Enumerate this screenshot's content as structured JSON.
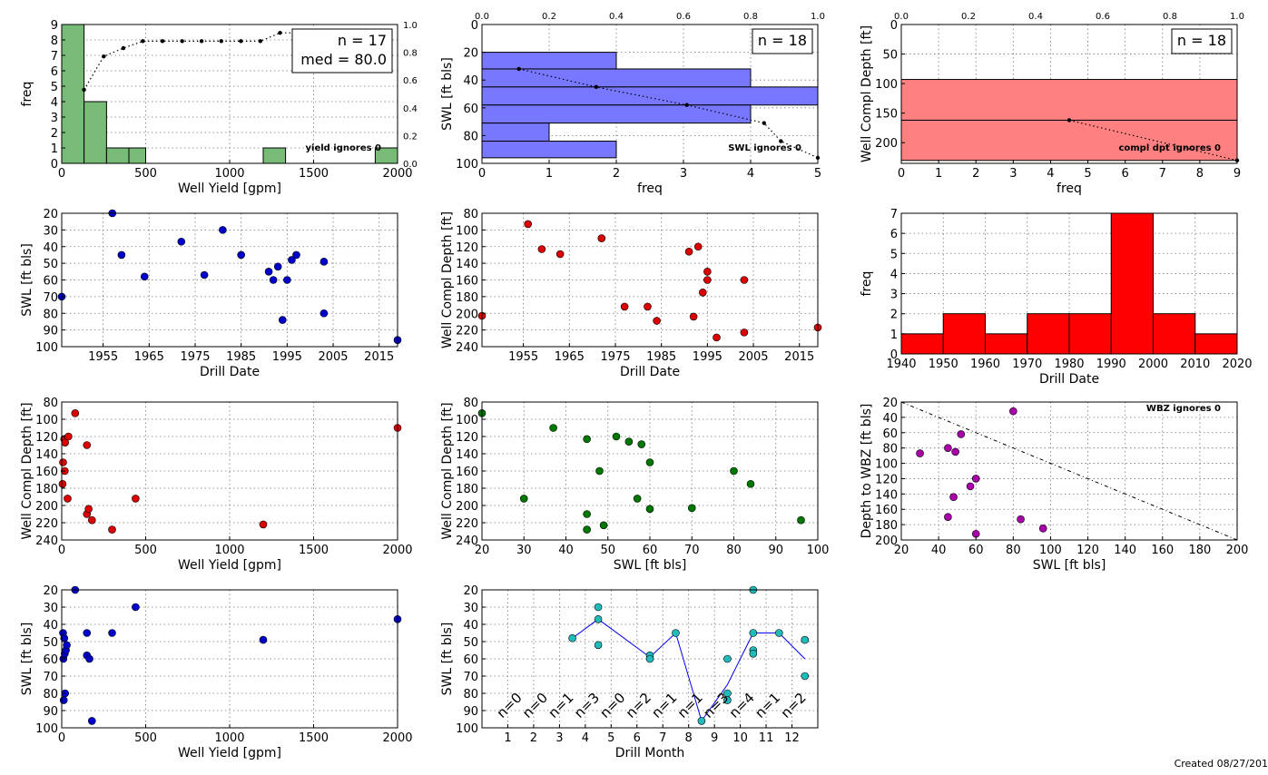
{
  "footer": {
    "created": "Created 08/27/201"
  },
  "chart_data": [
    {
      "id": "yield-hist",
      "type": "bar",
      "xlabel": "Well Yield [gpm]",
      "ylabel": "freq",
      "xlim": [
        0,
        2000
      ],
      "ylim": [
        0,
        9
      ],
      "y2lim": [
        0,
        1.0
      ],
      "xticks": [
        0,
        500,
        1000,
        1500,
        2000
      ],
      "yticks": [
        0,
        1,
        2,
        3,
        4,
        5,
        6,
        7,
        8,
        9
      ],
      "y2ticks": [
        "0.0",
        "0.2",
        "0.4",
        "0.6",
        "0.8",
        "1.0"
      ],
      "bars": [
        {
          "x0": 0,
          "x1": 133,
          "value": 9
        },
        {
          "x0": 133,
          "x1": 267,
          "value": 4
        },
        {
          "x0": 267,
          "x1": 400,
          "value": 1
        },
        {
          "x0": 400,
          "x1": 500,
          "value": 1
        },
        {
          "x0": 1200,
          "x1": 1333,
          "value": 1
        },
        {
          "x0": 1867,
          "x1": 2000,
          "value": 1
        }
      ],
      "bar_color": "#77bb77",
      "cdf": [
        [
          133,
          0.53
        ],
        [
          250,
          0.77
        ],
        [
          367,
          0.83
        ],
        [
          483,
          0.88
        ],
        [
          600,
          0.88
        ],
        [
          717,
          0.88
        ],
        [
          833,
          0.88
        ],
        [
          950,
          0.88
        ],
        [
          1067,
          0.88
        ],
        [
          1183,
          0.88
        ],
        [
          1300,
          0.94
        ],
        [
          1417,
          0.94
        ],
        [
          1533,
          0.94
        ],
        [
          1650,
          0.94
        ],
        [
          1767,
          0.94
        ],
        [
          1883,
          0.94
        ]
      ],
      "box_lines": [
        "n = 17",
        "med = 80.0"
      ],
      "note": "yield ignores 0"
    },
    {
      "id": "swl-hist",
      "type": "bar",
      "orientation": "horizontal",
      "xlabel": "freq",
      "ylabel": "SWL [ft bls]",
      "xlim": [
        0,
        5
      ],
      "ylim": [
        100,
        0
      ],
      "x2lim": [
        0,
        1.0
      ],
      "xticks": [
        0,
        1,
        2,
        3,
        4,
        5
      ],
      "yticks": [
        0,
        20,
        40,
        60,
        80,
        100
      ],
      "x2ticks": [
        "0.0",
        "0.2",
        "0.4",
        "0.6",
        "0.8",
        "1.0"
      ],
      "bars": [
        {
          "y0": 20,
          "y1": 32,
          "value": 2
        },
        {
          "y0": 32,
          "y1": 45,
          "value": 4
        },
        {
          "y0": 45,
          "y1": 58,
          "value": 5
        },
        {
          "y0": 58,
          "y1": 71,
          "value": 4
        },
        {
          "y0": 71,
          "y1": 84,
          "value": 1
        },
        {
          "y0": 84,
          "y1": 96,
          "value": 2
        }
      ],
      "bar_color": "#7777ff",
      "cdf": [
        [
          0.11,
          32
        ],
        [
          0.34,
          45
        ],
        [
          0.61,
          58
        ],
        [
          0.84,
          71
        ],
        [
          0.89,
          84
        ],
        [
          1.0,
          96
        ]
      ],
      "box_lines": [
        "n = 18"
      ],
      "note": "SWL ignores 0"
    },
    {
      "id": "depth-hist",
      "type": "bar",
      "orientation": "horizontal",
      "xlabel": "freq",
      "ylabel": "Well Compl Depth [ft]",
      "xlim": [
        0,
        9
      ],
      "ylim": [
        235,
        0
      ],
      "x2lim": [
        0,
        1.0
      ],
      "xticks": [
        0,
        1,
        2,
        3,
        4,
        5,
        6,
        7,
        8,
        9
      ],
      "yticks": [
        0,
        50,
        100,
        150,
        200
      ],
      "x2ticks": [
        "0.0",
        "0.2",
        "0.4",
        "0.6",
        "0.8",
        "1.0"
      ],
      "bars": [
        {
          "y0": 93,
          "y1": 162,
          "value": 9
        },
        {
          "y0": 162,
          "y1": 230,
          "value": 9
        }
      ],
      "bar_color": "#ff8080",
      "cdf": [
        [
          0.5,
          162
        ],
        [
          1.0,
          230
        ]
      ],
      "box_lines": [
        "n = 18"
      ],
      "note": "compl dpt ignores 0"
    },
    {
      "id": "swl-vs-date",
      "type": "scatter",
      "xlabel": "Drill Date",
      "ylabel": "SWL [ft bls]",
      "xlim": [
        1946,
        2019
      ],
      "ylim": [
        100,
        20
      ],
      "xticks": [
        1955,
        1965,
        1975,
        1985,
        1995,
        2005,
        2015
      ],
      "yticks": [
        20,
        30,
        40,
        50,
        60,
        70,
        80,
        90,
        100
      ],
      "color": "#0000cc",
      "points": [
        [
          1946,
          70
        ],
        [
          1957,
          20
        ],
        [
          1959,
          45
        ],
        [
          1964,
          58
        ],
        [
          1972,
          37
        ],
        [
          1977,
          57
        ],
        [
          1981,
          30
        ],
        [
          1985,
          45
        ],
        [
          1991,
          55
        ],
        [
          1992,
          60
        ],
        [
          1993,
          52
        ],
        [
          1994,
          84
        ],
        [
          1995,
          60
        ],
        [
          1996,
          48
        ],
        [
          1997,
          45
        ],
        [
          2003,
          49
        ],
        [
          2003,
          80
        ],
        [
          2019,
          96
        ]
      ]
    },
    {
      "id": "depth-vs-date",
      "type": "scatter",
      "xlabel": "Drill Date",
      "ylabel": "Well Compl Depth [ft]",
      "xlim": [
        1946,
        2019
      ],
      "ylim": [
        240,
        80
      ],
      "xticks": [
        1955,
        1965,
        1975,
        1985,
        1995,
        2005,
        2015
      ],
      "yticks": [
        80,
        100,
        120,
        140,
        160,
        180,
        200,
        220,
        240
      ],
      "color": "#dd0000",
      "points": [
        [
          1946,
          203
        ],
        [
          1956,
          93
        ],
        [
          1959,
          123
        ],
        [
          1963,
          129
        ],
        [
          1972,
          110
        ],
        [
          1977,
          192
        ],
        [
          1982,
          192
        ],
        [
          1984,
          209
        ],
        [
          1991,
          126
        ],
        [
          1992,
          204
        ],
        [
          1993,
          120
        ],
        [
          1994,
          175
        ],
        [
          1995,
          150
        ],
        [
          1995,
          160
        ],
        [
          1997,
          229
        ],
        [
          2003,
          160
        ],
        [
          2003,
          223
        ],
        [
          2019,
          217
        ]
      ]
    },
    {
      "id": "date-hist",
      "type": "bar",
      "xlabel": "Drill Date",
      "ylabel": "freq",
      "xlim": [
        1940,
        2020
      ],
      "ylim": [
        0,
        7
      ],
      "xticks": [
        1940,
        1950,
        1960,
        1970,
        1980,
        1990,
        2000,
        2010,
        2020
      ],
      "yticks": [
        0,
        1,
        2,
        3,
        4,
        5,
        6,
        7
      ],
      "bars": [
        {
          "x0": 1940,
          "x1": 1950,
          "value": 1
        },
        {
          "x0": 1950,
          "x1": 1960,
          "value": 2
        },
        {
          "x0": 1960,
          "x1": 1970,
          "value": 1
        },
        {
          "x0": 1970,
          "x1": 1980,
          "value": 2
        },
        {
          "x0": 1980,
          "x1": 1990,
          "value": 2
        },
        {
          "x0": 1990,
          "x1": 2000,
          "value": 7
        },
        {
          "x0": 2000,
          "x1": 2010,
          "value": 2
        },
        {
          "x0": 2010,
          "x1": 2020,
          "value": 1
        }
      ],
      "bar_color": "#ff0000"
    },
    {
      "id": "depth-vs-yield",
      "type": "scatter",
      "xlabel": "Well Yield [gpm]",
      "ylabel": "Well Compl Depth [ft]",
      "xlim": [
        0,
        2000
      ],
      "ylim": [
        240,
        80
      ],
      "xticks": [
        0,
        500,
        1000,
        1500,
        2000
      ],
      "yticks": [
        80,
        100,
        120,
        140,
        160,
        180,
        200,
        220,
        240
      ],
      "color": "#dd0000",
      "points": [
        [
          5,
          175
        ],
        [
          8,
          150
        ],
        [
          15,
          123
        ],
        [
          18,
          160
        ],
        [
          20,
          127
        ],
        [
          35,
          192
        ],
        [
          40,
          120
        ],
        [
          80,
          93
        ],
        [
          150,
          130
        ],
        [
          150,
          210
        ],
        [
          160,
          204
        ],
        [
          180,
          217
        ],
        [
          300,
          228
        ],
        [
          440,
          192
        ],
        [
          1200,
          222
        ],
        [
          2000,
          110
        ]
      ]
    },
    {
      "id": "depth-vs-swl",
      "type": "scatter",
      "xlabel": "SWL [ft bls]",
      "ylabel": "Well Compl Depth [ft]",
      "xlim": [
        20,
        100
      ],
      "ylim": [
        240,
        80
      ],
      "xticks": [
        20,
        30,
        40,
        50,
        60,
        70,
        80,
        90,
        100
      ],
      "yticks": [
        80,
        100,
        120,
        140,
        160,
        180,
        200,
        220,
        240
      ],
      "color": "#007700",
      "points": [
        [
          20,
          93
        ],
        [
          30,
          192
        ],
        [
          37,
          110
        ],
        [
          45,
          123
        ],
        [
          45,
          210
        ],
        [
          45,
          228
        ],
        [
          48,
          160
        ],
        [
          49,
          223
        ],
        [
          52,
          120
        ],
        [
          55,
          126
        ],
        [
          57,
          192
        ],
        [
          58,
          129
        ],
        [
          60,
          150
        ],
        [
          60,
          204
        ],
        [
          70,
          203
        ],
        [
          80,
          160
        ],
        [
          84,
          175
        ],
        [
          96,
          217
        ]
      ]
    },
    {
      "id": "wbz-vs-swl",
      "type": "scatter",
      "xlabel": "SWL [ft bls]",
      "ylabel": "Depth to WBZ [ft bls]",
      "xlim": [
        20,
        200
      ],
      "ylim": [
        200,
        20
      ],
      "xticks": [
        20,
        40,
        60,
        80,
        100,
        120,
        140,
        160,
        180,
        200
      ],
      "yticks": [
        20,
        40,
        60,
        80,
        100,
        120,
        140,
        160,
        180,
        200
      ],
      "color": "#aa00aa",
      "points": [
        [
          30,
          87
        ],
        [
          45,
          80
        ],
        [
          45,
          170
        ],
        [
          48,
          144
        ],
        [
          49,
          85
        ],
        [
          52,
          62
        ],
        [
          57,
          130
        ],
        [
          60,
          120
        ],
        [
          60,
          192
        ],
        [
          80,
          32
        ],
        [
          84,
          173
        ],
        [
          96,
          185
        ]
      ],
      "line": [
        [
          20,
          20
        ],
        [
          200,
          200
        ]
      ],
      "note": "WBZ ignores 0"
    },
    {
      "id": "swl-vs-yield",
      "type": "scatter",
      "xlabel": "Well Yield [gpm]",
      "ylabel": "SWL [ft bls]",
      "xlim": [
        0,
        2000
      ],
      "ylim": [
        100,
        20
      ],
      "xticks": [
        0,
        500,
        1000,
        1500,
        2000
      ],
      "yticks": [
        20,
        30,
        40,
        50,
        60,
        70,
        80,
        90,
        100
      ],
      "color": "#0000cc",
      "points": [
        [
          8,
          45
        ],
        [
          10,
          60
        ],
        [
          12,
          84
        ],
        [
          15,
          48
        ],
        [
          18,
          57
        ],
        [
          20,
          80
        ],
        [
          25,
          55
        ],
        [
          30,
          52
        ],
        [
          80,
          20
        ],
        [
          150,
          45
        ],
        [
          150,
          58
        ],
        [
          165,
          60
        ],
        [
          180,
          96
        ],
        [
          300,
          45
        ],
        [
          440,
          30
        ],
        [
          1200,
          49
        ],
        [
          2000,
          37
        ]
      ]
    },
    {
      "id": "swl-vs-month",
      "type": "scatter",
      "xlabel": "Drill Month",
      "ylabel": "SWL [ft bls]",
      "xlim": [
        0,
        13
      ],
      "ylim": [
        100,
        20
      ],
      "xticks": [
        1,
        2,
        3,
        4,
        5,
        6,
        7,
        8,
        9,
        10,
        11,
        12
      ],
      "yticks": [
        20,
        30,
        40,
        50,
        60,
        70,
        80,
        90,
        100
      ],
      "color": "#22bbbb",
      "points": [
        [
          3.5,
          48
        ],
        [
          4.5,
          30
        ],
        [
          4.5,
          37
        ],
        [
          4.5,
          52
        ],
        [
          6.5,
          58
        ],
        [
          6.5,
          60
        ],
        [
          7.5,
          45
        ],
        [
          8.5,
          96
        ],
        [
          9.5,
          60
        ],
        [
          9.5,
          80
        ],
        [
          9.5,
          84
        ],
        [
          10.5,
          20
        ],
        [
          10.5,
          45
        ],
        [
          10.5,
          55
        ],
        [
          10.5,
          57
        ],
        [
          11.5,
          45
        ],
        [
          12.5,
          49
        ],
        [
          12.5,
          70
        ]
      ],
      "line": [
        [
          3.5,
          48
        ],
        [
          4.5,
          37
        ],
        [
          6.5,
          59
        ],
        [
          7.5,
          45
        ],
        [
          8.5,
          96
        ],
        [
          9.5,
          75
        ],
        [
          10.5,
          45
        ],
        [
          11.5,
          45
        ],
        [
          12.5,
          60
        ]
      ],
      "count_labels": [
        {
          "month": 1,
          "text": "n=0"
        },
        {
          "month": 2,
          "text": "n=0"
        },
        {
          "month": 3,
          "text": "n=1"
        },
        {
          "month": 4,
          "text": "n=3"
        },
        {
          "month": 5,
          "text": "n=0"
        },
        {
          "month": 6,
          "text": "n=2"
        },
        {
          "month": 7,
          "text": "n=1"
        },
        {
          "month": 8,
          "text": "n=1"
        },
        {
          "month": 9,
          "text": "n=3"
        },
        {
          "month": 10,
          "text": "n=4"
        },
        {
          "month": 11,
          "text": "n=1"
        },
        {
          "month": 12,
          "text": "n=2"
        }
      ]
    }
  ]
}
